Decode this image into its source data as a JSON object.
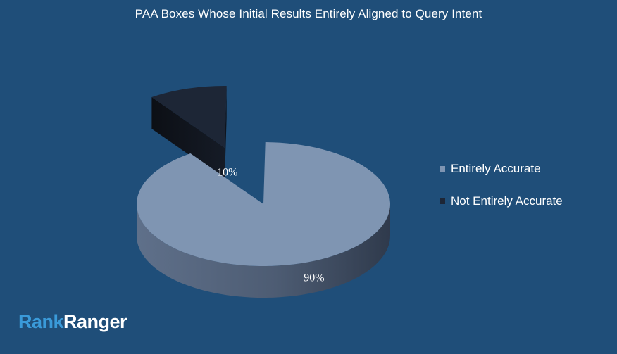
{
  "chart_data": {
    "type": "pie",
    "title": "PAA Boxes Whose Initial Results Entirely Aligned to Query Intent",
    "categories": [
      "Entirely Accurate",
      "Not Entirely Accurate"
    ],
    "values": [
      90,
      10
    ],
    "data_labels": [
      "90%",
      "10%"
    ],
    "colors": [
      "#7f95b2",
      "#1d2636"
    ],
    "exploded": "Not Entirely Accurate",
    "style": "3d",
    "legend_position": "right"
  },
  "logo": {
    "part1": "Rank",
    "part2": "Ranger"
  }
}
